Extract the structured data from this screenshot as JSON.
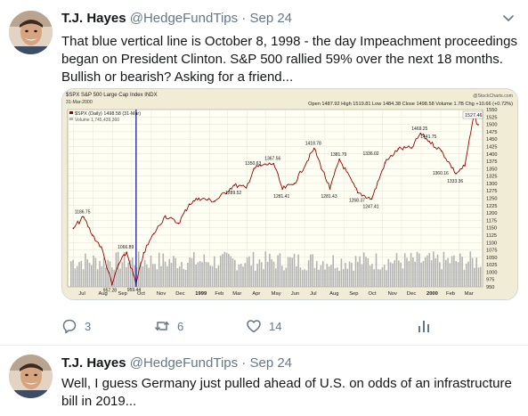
{
  "tweets": [
    {
      "name": "T.J. Hayes",
      "handle": "@HedgeFundTips",
      "separator": "·",
      "date": "Sep 24",
      "text": "That blue vertical line is October 8, 1998 - the day Impeachment proceedings began on President Clinton.  S&P 500 rallied 59% over the next 18 months. Bullish or bearish?  Asking for a friend...",
      "reply_count": "3",
      "retweet_count": "6",
      "like_count": "14"
    },
    {
      "name": "T.J. Hayes",
      "handle": "@HedgeFundTips",
      "separator": "·",
      "date": "Sep 24",
      "text": "Well, I guess Germany just pulled ahead of U.S. on odds of an infrastructure bill in 2019..."
    }
  ],
  "chart": {
    "title": "$SPX S&P 500 Large Cap Index INDX",
    "date_label": "31-Mar-2000",
    "watermark": "@StockCharts.com",
    "ohlc": "Open 1487.92  High 1519.81  Low 1484.38  Close 1498.58  Volume 1.7B  Chg +10.66 (+0.72%)",
    "legend_price": "$SPX (Daily) 1498.58 (31-Mar)",
    "legend_volume": "Volume 1,745,439,360",
    "last_label": "1527.46",
    "y_ticks": [
      "1550",
      "1525",
      "1500",
      "1475",
      "1450",
      "1425",
      "1400",
      "1375",
      "1350",
      "1325",
      "1300",
      "1275",
      "1250",
      "1225",
      "1200",
      "1175",
      "1150",
      "1125",
      "1100",
      "1075",
      "1050",
      "1025",
      "1000",
      "975",
      "950"
    ],
    "x_ticks": [
      "Jul",
      "Aug",
      "Sep",
      "Oct",
      "Nov",
      "Dec",
      "1999",
      "Feb",
      "Mar",
      "Apr",
      "May",
      "Jun",
      "Jul",
      "Aug",
      "Sep",
      "Oct",
      "Nov",
      "Dec",
      "2000",
      "Feb",
      "Mar"
    ],
    "annotations": [
      "1186.75",
      "1066.89",
      "957.28",
      "959.44",
      "1289.52",
      "1350.63",
      "1367.56",
      "1281.41",
      "1418.78",
      "1381.79",
      "1281.43",
      "1336.02",
      "1268.37",
      "1247.41",
      "1469.25",
      "1441.75",
      "1360.16",
      "1333.36"
    ],
    "colors": {
      "price_line": "#990000",
      "volume": "#b3b3b3",
      "vline": "#1a1aa8",
      "plot_bg": "#fffff4",
      "frame_bg": "#f1ecd6"
    }
  },
  "chart_data": {
    "type": "line",
    "title": "$SPX S&P 500 Large Cap Index INDX",
    "x": [
      "1998-07-01",
      "1998-07-17",
      "1998-07-31",
      "1998-08-14",
      "1998-08-31",
      "1998-09-10",
      "1998-09-23",
      "1998-10-08",
      "1998-10-20",
      "1998-11-05",
      "1998-11-23",
      "1998-12-14",
      "1998-12-31",
      "1999-01-15",
      "1999-02-09",
      "1999-03-12",
      "1999-03-31",
      "1999-04-12",
      "1999-04-23",
      "1999-05-13",
      "1999-05-27",
      "1999-06-15",
      "1999-07-16",
      "1999-08-10",
      "1999-08-25",
      "1999-09-23",
      "1999-10-15",
      "1999-11-05",
      "1999-11-26",
      "1999-12-17",
      "1999-12-31",
      "2000-01-14",
      "2000-02-02",
      "2000-02-25",
      "2000-03-10",
      "2000-03-24",
      "2000-03-31"
    ],
    "y": [
      1148,
      1186.75,
      1125,
      1085,
      957.28,
      1025,
      1066.89,
      959.44,
      1065,
      1130,
      1190,
      1165,
      1230,
      1250,
      1240,
      1294,
      1285,
      1350.63,
      1360,
      1367.56,
      1281.41,
      1300,
      1418.78,
      1281.43,
      1381.79,
      1268.37,
      1247.41,
      1370,
      1417,
      1420,
      1469.25,
      1441.75,
      1410,
      1333.36,
      1360.16,
      1527.46,
      1498.58
    ],
    "ylim": [
      950,
      1550
    ],
    "y_ticks": [
      1550,
      1525,
      1500,
      1475,
      1450,
      1425,
      1400,
      1375,
      1350,
      1325,
      1300,
      1275,
      1250,
      1225,
      1200,
      1175,
      1150,
      1125,
      1100,
      1075,
      1050,
      1025,
      1000,
      975,
      950
    ],
    "x_ticks": [
      "Jul",
      "Aug",
      "Sep",
      "Oct",
      "Nov",
      "Dec",
      "1999",
      "Feb",
      "Mar",
      "Apr",
      "May",
      "Jun",
      "Jul",
      "Aug",
      "Sep",
      "Oct",
      "Nov",
      "Dec",
      "2000",
      "Feb",
      "Mar"
    ],
    "vline_date": "1998-10-08",
    "grid": true,
    "legend": "top-left"
  }
}
